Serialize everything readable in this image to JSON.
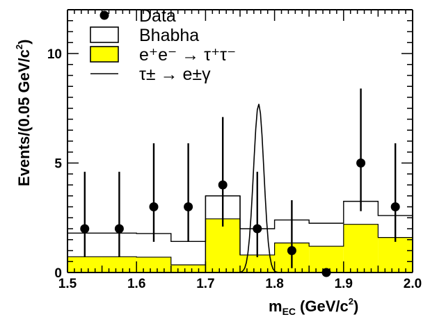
{
  "chart_data": {
    "type": "bar",
    "xlabel": "m",
    "xlabel_sub": "EC",
    "xlabel_unit_pre": "(GeV/c",
    "xlabel_unit_sup": "2",
    "xlabel_unit_post": ")",
    "ylabel_pre": "Events/(0.05 GeV/c",
    "ylabel_sup": "2",
    "ylabel_post": ")",
    "xlim": [
      1.5,
      2.0
    ],
    "ylim": [
      0,
      12
    ],
    "x_ticks": [
      {
        "value": 1.5,
        "label": "1.5"
      },
      {
        "value": 1.6,
        "label": "1.6"
      },
      {
        "value": 1.7,
        "label": "1.7"
      },
      {
        "value": 1.8,
        "label": "1.8"
      },
      {
        "value": 1.9,
        "label": "1.9"
      },
      {
        "value": 2.0,
        "label": "2.0"
      }
    ],
    "y_ticks": [
      {
        "value": 0,
        "label": "0"
      },
      {
        "value": 5,
        "label": "5"
      },
      {
        "value": 10,
        "label": "10"
      }
    ],
    "bin_edges": [
      1.5,
      1.55,
      1.6,
      1.65,
      1.7,
      1.75,
      1.8,
      1.85,
      1.9,
      1.95,
      2.0
    ],
    "series": [
      {
        "name": "Data",
        "kind": "points",
        "x": [
          1.525,
          1.575,
          1.625,
          1.675,
          1.725,
          1.775,
          1.825,
          1.875,
          1.925,
          1.975
        ],
        "values": [
          2,
          2,
          3,
          3,
          4,
          2,
          1,
          0,
          5,
          3
        ],
        "err_low": [
          1.3,
          1.3,
          1.6,
          1.6,
          1.9,
          1.3,
          0.8,
          0,
          2.2,
          1.6
        ],
        "err_high": [
          2.6,
          2.6,
          2.9,
          2.9,
          3.1,
          2.6,
          2.3,
          0,
          3.4,
          2.9
        ]
      },
      {
        "name": "Bhabha",
        "kind": "stack-total",
        "values": [
          1.8,
          1.8,
          1.78,
          1.42,
          3.5,
          2.0,
          2.4,
          2.25,
          3.25,
          2.6
        ],
        "color": "#ffffff"
      },
      {
        "name": "e⁺e⁻ → τ⁺τ⁻",
        "kind": "stack-base",
        "values": [
          0.72,
          0.72,
          0.7,
          0.35,
          2.45,
          0.8,
          1.35,
          1.2,
          2.2,
          1.6
        ],
        "color": "#ffff00"
      },
      {
        "name": "τ± → e±γ",
        "kind": "curve",
        "peak_x": 1.777,
        "peak_y": 7.7,
        "sigma": 0.0075
      }
    ],
    "legend_position": "top-left"
  }
}
